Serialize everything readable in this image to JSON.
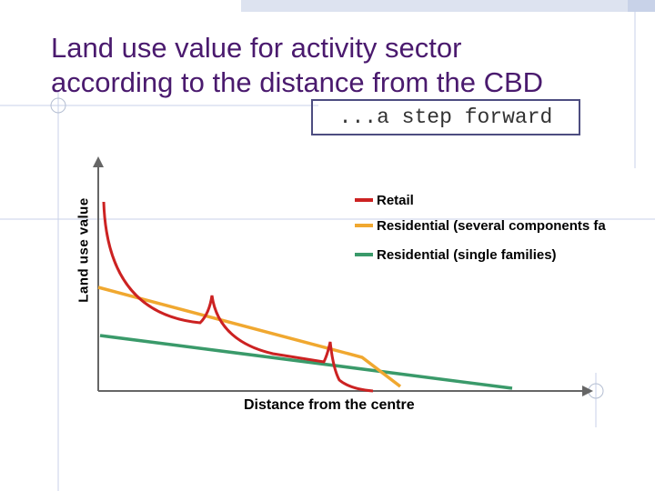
{
  "title_line1": "Land use value for activity sector",
  "title_line2": "according to the distance from the CBD",
  "subtitle": "...a step forward",
  "colors": {
    "title": "#4a1a6e",
    "retail": "#cc2222",
    "residential_several": "#f0a830",
    "residential_single": "#3a9a6a",
    "axis": "#666666",
    "grid": "#c8d2e8"
  },
  "chart_data": {
    "type": "line",
    "xlabel": "Distance from the centre",
    "ylabel": "Land use value",
    "grid": false,
    "legend_position": "top-right",
    "series": [
      {
        "name": "Retail",
        "key": "retail"
      },
      {
        "name": "Residential (several components  fa",
        "key": "residential_several"
      },
      {
        "name": "Residential (single families)",
        "key": "residential_single"
      }
    ]
  }
}
